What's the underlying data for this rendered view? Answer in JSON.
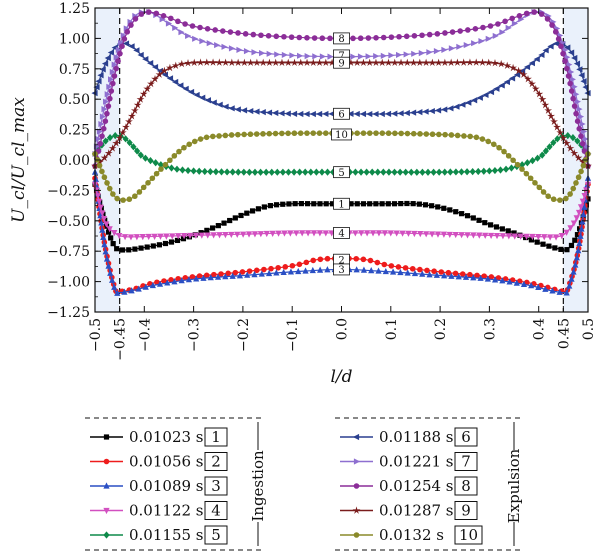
{
  "chart_data": {
    "type": "line",
    "xlabel": "l/d",
    "ylabel": "U_cl/U_cl_max",
    "xlim": [
      -0.5,
      0.5
    ],
    "ylim": [
      -1.25,
      1.25
    ],
    "xticks": [
      "−0.5",
      "−0.45",
      "−0.4",
      "−0.3",
      "−0.2",
      "−0.1",
      "0.0",
      "0.1",
      "0.2",
      "0.3",
      "0.4",
      "0.45",
      "0.5"
    ],
    "xtick_values": [
      -0.5,
      -0.45,
      -0.4,
      -0.3,
      -0.2,
      -0.1,
      0.0,
      0.1,
      0.2,
      0.3,
      0.4,
      0.45,
      0.5
    ],
    "yticks": [
      "1.25",
      "1.00",
      "0.75",
      "0.50",
      "0.25",
      "0.00",
      "−0.25",
      "−0.50",
      "−0.75",
      "−1.00",
      "−1.25"
    ],
    "ytick_values": [
      1.25,
      1.0,
      0.75,
      0.5,
      0.25,
      0.0,
      -0.25,
      -0.5,
      -0.75,
      -1.0,
      -1.25
    ],
    "dashed_lines_x": [
      -0.45,
      0.45
    ],
    "legend_groups": [
      "Ingestion",
      "Expulsion"
    ],
    "series": [
      {
        "name": "0.01023 s",
        "id": "1",
        "color": "#000000",
        "marker": "square",
        "group": "Ingestion",
        "x": [
          -0.5,
          -0.48,
          -0.46,
          -0.44,
          -0.4,
          -0.35,
          -0.3,
          -0.25,
          -0.2,
          -0.15,
          -0.1,
          -0.05,
          0.0,
          0.05,
          0.1,
          0.15,
          0.2,
          0.25,
          0.3,
          0.35,
          0.4,
          0.44,
          0.46,
          0.48,
          0.5
        ],
        "y": [
          -0.2,
          -0.5,
          -0.71,
          -0.74,
          -0.72,
          -0.68,
          -0.62,
          -0.54,
          -0.45,
          -0.38,
          -0.36,
          -0.36,
          -0.36,
          -0.36,
          -0.36,
          -0.36,
          -0.39,
          -0.45,
          -0.53,
          -0.6,
          -0.68,
          -0.73,
          -0.73,
          -0.6,
          -0.32
        ]
      },
      {
        "name": "0.01056 s",
        "id": "2",
        "color": "#ee1c1c",
        "marker": "circle",
        "group": "Ingestion",
        "x": [
          -0.5,
          -0.48,
          -0.46,
          -0.45,
          -0.42,
          -0.38,
          -0.3,
          -0.2,
          -0.1,
          -0.05,
          0.0,
          0.05,
          0.1,
          0.2,
          0.3,
          0.38,
          0.42,
          0.45,
          0.46,
          0.48,
          0.5
        ],
        "y": [
          -0.15,
          -0.7,
          -1.05,
          -1.08,
          -1.06,
          -1.01,
          -0.96,
          -0.92,
          -0.87,
          -0.82,
          -0.81,
          -0.82,
          -0.87,
          -0.92,
          -0.96,
          -1.01,
          -1.05,
          -1.08,
          -1.05,
          -0.75,
          -0.2
        ]
      },
      {
        "name": "0.01089 s",
        "id": "3",
        "color": "#2a4fc4",
        "marker": "triangle-up",
        "group": "Ingestion",
        "x": [
          -0.5,
          -0.48,
          -0.46,
          -0.45,
          -0.42,
          -0.38,
          -0.3,
          -0.2,
          -0.1,
          0.0,
          0.1,
          0.2,
          0.3,
          0.38,
          0.42,
          0.45,
          0.46,
          0.48,
          0.5
        ],
        "y": [
          -0.1,
          -0.72,
          -1.06,
          -1.09,
          -1.07,
          -1.03,
          -0.98,
          -0.95,
          -0.92,
          -0.9,
          -0.92,
          -0.95,
          -0.98,
          -1.03,
          -1.07,
          -1.09,
          -1.06,
          -0.75,
          -0.15
        ]
      },
      {
        "name": "0.01122 s",
        "id": "4",
        "color": "#d24fc0",
        "marker": "triangle-down",
        "group": "Ingestion",
        "x": [
          -0.5,
          -0.48,
          -0.46,
          -0.44,
          -0.4,
          -0.3,
          -0.2,
          -0.1,
          0.0,
          0.1,
          0.2,
          0.3,
          0.4,
          0.44,
          0.46,
          0.48,
          0.5
        ],
        "y": [
          -0.2,
          -0.5,
          -0.6,
          -0.63,
          -0.63,
          -0.62,
          -0.61,
          -0.6,
          -0.6,
          -0.6,
          -0.61,
          -0.62,
          -0.63,
          -0.63,
          -0.58,
          -0.45,
          -0.2
        ]
      },
      {
        "name": "0.01155 s",
        "id": "5",
        "color": "#0e8a4a",
        "marker": "diamond",
        "group": "Ingestion",
        "x": [
          -0.5,
          -0.48,
          -0.46,
          -0.44,
          -0.42,
          -0.4,
          -0.35,
          -0.3,
          -0.2,
          -0.1,
          0.0,
          0.1,
          0.2,
          0.3,
          0.35,
          0.4,
          0.42,
          0.44,
          0.46,
          0.48,
          0.5
        ],
        "y": [
          0.05,
          0.15,
          0.2,
          0.18,
          0.1,
          0.02,
          -0.06,
          -0.09,
          -0.1,
          -0.1,
          -0.1,
          -0.1,
          -0.1,
          -0.09,
          -0.06,
          0.02,
          0.1,
          0.18,
          0.2,
          0.15,
          0.05
        ]
      },
      {
        "name": "0.01188 s",
        "id": "6",
        "color": "#2a3f8f",
        "marker": "triangle-left",
        "group": "Expulsion",
        "x": [
          -0.5,
          -0.48,
          -0.46,
          -0.44,
          -0.42,
          -0.4,
          -0.35,
          -0.3,
          -0.25,
          -0.2,
          -0.1,
          0.0,
          0.1,
          0.2,
          0.25,
          0.3,
          0.35,
          0.4,
          0.42,
          0.44,
          0.46,
          0.48,
          0.5
        ],
        "y": [
          0.55,
          0.78,
          0.92,
          0.96,
          0.92,
          0.84,
          0.68,
          0.55,
          0.46,
          0.41,
          0.38,
          0.38,
          0.38,
          0.41,
          0.46,
          0.55,
          0.68,
          0.84,
          0.92,
          0.96,
          0.92,
          0.78,
          0.55
        ]
      },
      {
        "name": "0.01221 s",
        "id": "7",
        "color": "#8e6fd0",
        "marker": "triangle-right",
        "group": "Expulsion",
        "x": [
          -0.5,
          -0.48,
          -0.46,
          -0.44,
          -0.42,
          -0.4,
          -0.38,
          -0.35,
          -0.3,
          -0.2,
          -0.1,
          0.0,
          0.1,
          0.2,
          0.3,
          0.35,
          0.38,
          0.4,
          0.42,
          0.44,
          0.46,
          0.48,
          0.5
        ],
        "y": [
          0.05,
          0.45,
          0.8,
          1.05,
          1.18,
          1.22,
          1.2,
          1.12,
          1.0,
          0.9,
          0.86,
          0.85,
          0.86,
          0.9,
          1.0,
          1.12,
          1.2,
          1.22,
          1.18,
          1.05,
          0.8,
          0.45,
          0.05
        ]
      },
      {
        "name": "0.01254 s",
        "id": "8",
        "color": "#8b2d98",
        "marker": "circle",
        "group": "Expulsion",
        "x": [
          -0.5,
          -0.48,
          -0.46,
          -0.44,
          -0.42,
          -0.4,
          -0.38,
          -0.35,
          -0.3,
          -0.2,
          -0.1,
          0.0,
          0.1,
          0.2,
          0.3,
          0.35,
          0.38,
          0.4,
          0.42,
          0.44,
          0.46,
          0.48,
          0.5
        ],
        "y": [
          -0.05,
          0.3,
          0.7,
          1.0,
          1.15,
          1.21,
          1.21,
          1.17,
          1.1,
          1.04,
          1.01,
          1.0,
          1.01,
          1.04,
          1.1,
          1.17,
          1.21,
          1.21,
          1.15,
          1.0,
          0.7,
          0.3,
          -0.05
        ]
      },
      {
        "name": "0.01287 s",
        "id": "9",
        "color": "#7a1c1c",
        "marker": "star",
        "group": "Expulsion",
        "x": [
          -0.5,
          -0.48,
          -0.46,
          -0.44,
          -0.42,
          -0.4,
          -0.37,
          -0.34,
          -0.3,
          -0.2,
          -0.1,
          0.0,
          0.1,
          0.2,
          0.3,
          0.34,
          0.37,
          0.4,
          0.42,
          0.44,
          0.46,
          0.48,
          0.5
        ],
        "y": [
          -0.05,
          0.02,
          0.12,
          0.25,
          0.4,
          0.55,
          0.7,
          0.77,
          0.8,
          0.8,
          0.8,
          0.8,
          0.8,
          0.8,
          0.8,
          0.77,
          0.7,
          0.55,
          0.4,
          0.25,
          0.12,
          0.02,
          -0.05
        ]
      },
      {
        "name": "0.0132 s",
        "id": "10",
        "color": "#8a8a2a",
        "marker": "circle",
        "group": "Expulsion",
        "x": [
          -0.5,
          -0.48,
          -0.46,
          -0.44,
          -0.42,
          -0.4,
          -0.36,
          -0.32,
          -0.28,
          -0.24,
          -0.2,
          -0.1,
          0.0,
          0.1,
          0.2,
          0.24,
          0.28,
          0.32,
          0.36,
          0.4,
          0.42,
          0.44,
          0.46,
          0.48,
          0.5
        ],
        "y": [
          0.05,
          -0.15,
          -0.3,
          -0.33,
          -0.3,
          -0.22,
          -0.05,
          0.1,
          0.18,
          0.2,
          0.21,
          0.22,
          0.22,
          0.22,
          0.21,
          0.2,
          0.18,
          0.1,
          -0.05,
          -0.22,
          -0.3,
          -0.33,
          -0.3,
          -0.15,
          0.05
        ]
      }
    ],
    "box_labels": [
      {
        "id": "8",
        "x": 0.0,
        "y": 1.0
      },
      {
        "id": "7",
        "x": 0.0,
        "y": 0.86
      },
      {
        "id": "9",
        "x": 0.0,
        "y": 0.8
      },
      {
        "id": "6",
        "x": 0.0,
        "y": 0.38
      },
      {
        "id": "10",
        "x": 0.0,
        "y": 0.21
      },
      {
        "id": "5",
        "x": 0.0,
        "y": -0.1
      },
      {
        "id": "1",
        "x": 0.0,
        "y": -0.36
      },
      {
        "id": "4",
        "x": 0.0,
        "y": -0.6
      },
      {
        "id": "2",
        "x": 0.0,
        "y": -0.82
      },
      {
        "id": "3",
        "x": 0.0,
        "y": -0.9
      }
    ]
  }
}
